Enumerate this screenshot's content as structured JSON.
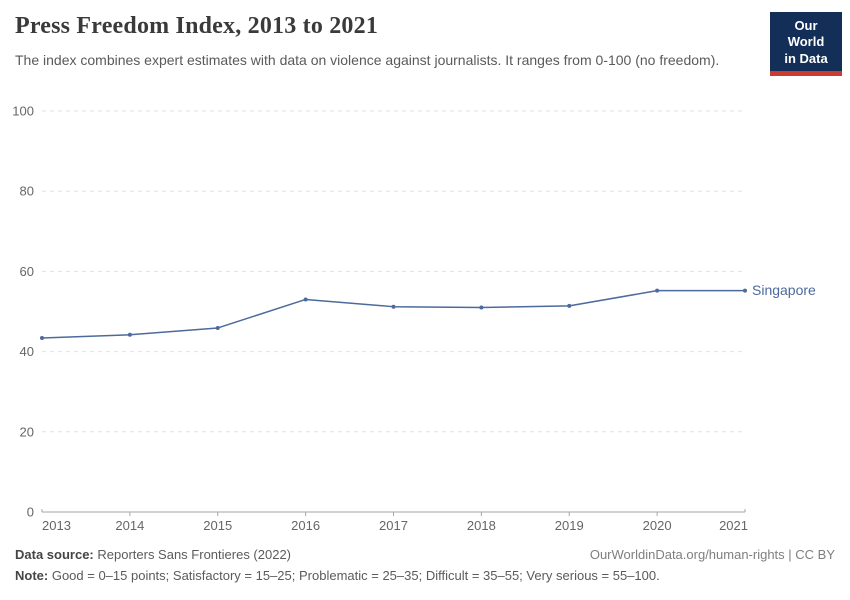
{
  "header": {
    "title": "Press Freedom Index, 2013 to 2021",
    "subtitle": "The index combines expert estimates with data on violence against journalists. It ranges from 0-100 (no freedom).",
    "logo": {
      "line1": "Our World",
      "line2": "in Data"
    }
  },
  "chart_data": {
    "type": "line",
    "title": "Press Freedom Index, 2013 to 2021",
    "x": [
      2013,
      2014,
      2015,
      2016,
      2017,
      2018,
      2019,
      2020,
      2021
    ],
    "series": [
      {
        "name": "Singapore",
        "values": [
          43.4,
          44.2,
          45.9,
          53.0,
          51.2,
          51.0,
          51.4,
          55.2,
          55.2
        ],
        "color": "#4c6a9c"
      }
    ],
    "xlabel": "",
    "ylabel": "",
    "ylim": [
      0,
      100
    ],
    "yticks": [
      0,
      20,
      40,
      60,
      80,
      100
    ],
    "grid": "horizontal-dashed",
    "legend_position": "end-of-line-label"
  },
  "footer": {
    "datasource_label": "Data source:",
    "datasource_text": " Reporters Sans Frontieres (2022)",
    "link": "OurWorldinData.org/human-rights | CC BY",
    "note_label": "Note:",
    "note_text": " Good = 0–15 points; Satisfactory = 15–25; Problematic = 25–35; Difficult = 35–55; Very serious = 55–100."
  },
  "colors": {
    "accent_line": "#4c6a9c",
    "grid": "#e2e2e2",
    "axis": "#a6a6a6",
    "tick_label": "#666666",
    "logo_bg": "#132f57",
    "logo_red": "#cc3b31",
    "title_text": "#3a3a3a",
    "subtitle_text": "#5a5a5a"
  }
}
